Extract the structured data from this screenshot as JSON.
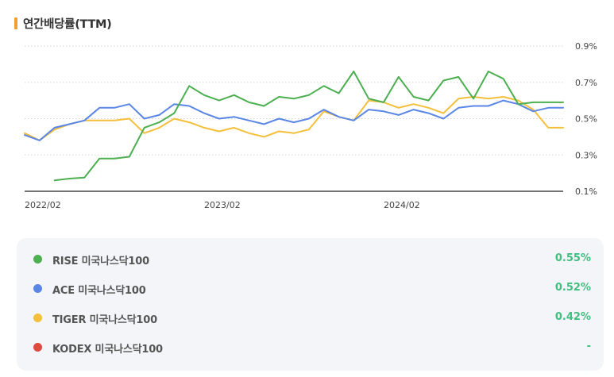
{
  "header": {
    "title": "연간배당률(TTM)",
    "accent_color": "#f0a030"
  },
  "chart_data": {
    "type": "line",
    "title": "연간배당률(TTM)",
    "xlabel": "",
    "ylabel": "",
    "ylim": [
      0.1,
      0.9
    ],
    "y_ticks": [
      "0.9%",
      "0.7%",
      "0.5%",
      "0.3%",
      "0.1%"
    ],
    "y_tick_values": [
      0.9,
      0.7,
      0.5,
      0.3,
      0.1
    ],
    "x_tick_labels": [
      "2022/02",
      "2023/02",
      "2024/02"
    ],
    "x_tick_indices": [
      0,
      12,
      24
    ],
    "grid": "horizontal dotted",
    "legend_position": "bottom",
    "x_count": 37,
    "series": [
      {
        "name": "RISE 미국나스닥100",
        "color": "#4caf50",
        "start_index": 2,
        "values": [
          0.16,
          0.17,
          0.175,
          0.28,
          0.28,
          0.29,
          0.45,
          0.48,
          0.53,
          0.68,
          0.63,
          0.6,
          0.63,
          0.59,
          0.57,
          0.62,
          0.61,
          0.63,
          0.68,
          0.64,
          0.76,
          0.61,
          0.59,
          0.73,
          0.62,
          0.6,
          0.71,
          0.73,
          0.61,
          0.76,
          0.72,
          0.58,
          0.59,
          0.59,
          0.59
        ]
      },
      {
        "name": "ACE 미국나스닥100",
        "color": "#5a86e6",
        "start_index": 0,
        "values": [
          0.41,
          0.38,
          0.45,
          0.47,
          0.49,
          0.56,
          0.56,
          0.58,
          0.5,
          0.52,
          0.58,
          0.57,
          0.53,
          0.5,
          0.51,
          0.49,
          0.47,
          0.5,
          0.48,
          0.5,
          0.55,
          0.51,
          0.49,
          0.55,
          0.54,
          0.52,
          0.55,
          0.53,
          0.5,
          0.56,
          0.57,
          0.57,
          0.6,
          0.58,
          0.54,
          0.56,
          0.56
        ]
      },
      {
        "name": "TIGER 미국나스닥100",
        "color": "#f4bf3a",
        "start_index": 0,
        "values": [
          0.42,
          0.38,
          0.44,
          0.47,
          0.49,
          0.49,
          0.49,
          0.5,
          0.42,
          0.45,
          0.5,
          0.48,
          0.45,
          0.43,
          0.45,
          0.42,
          0.4,
          0.43,
          0.42,
          0.44,
          0.54,
          0.51,
          0.49,
          0.6,
          0.59,
          0.56,
          0.58,
          0.56,
          0.53,
          0.61,
          0.62,
          0.61,
          0.62,
          0.6,
          0.55,
          0.45,
          0.45
        ]
      }
    ]
  },
  "legend": [
    {
      "name": "RISE 미국나스닥100",
      "color": "#4caf50",
      "value": "0.55%"
    },
    {
      "name": "ACE 미국나스닥100",
      "color": "#5a86e6",
      "value": "0.52%"
    },
    {
      "name": "TIGER 미국나스닥100",
      "color": "#f4bf3a",
      "value": "0.42%"
    },
    {
      "name": "KODEX 미국나스닥100",
      "color": "#e04a3f",
      "value": "-"
    }
  ]
}
